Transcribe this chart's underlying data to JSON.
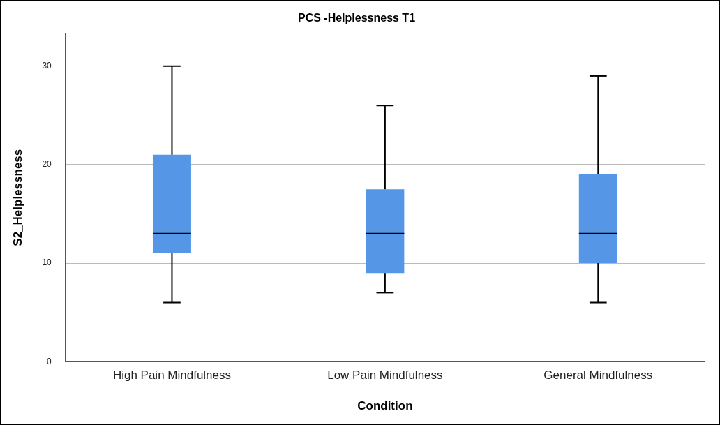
{
  "chart_data": {
    "type": "box",
    "title": "PCS -Helplessness T1",
    "xlabel": "Condition",
    "ylabel": "S2_Helplessness",
    "categories": [
      "High Pain Mindfulness",
      "Low Pain Mindfulness",
      "General Mindfulness"
    ],
    "color": "#5596e6",
    "boxes": [
      {
        "low": 6,
        "q1": 11,
        "median": 13,
        "q3": 21,
        "high": 30
      },
      {
        "low": 7,
        "q1": 9,
        "median": 13,
        "q3": 17.5,
        "high": 26
      },
      {
        "low": 6,
        "q1": 10,
        "median": 13,
        "q3": 19,
        "high": 29
      }
    ],
    "ylim": [
      0,
      33.3
    ],
    "yticks": [
      0,
      10,
      20,
      30
    ],
    "grid": "y",
    "legend": false
  }
}
